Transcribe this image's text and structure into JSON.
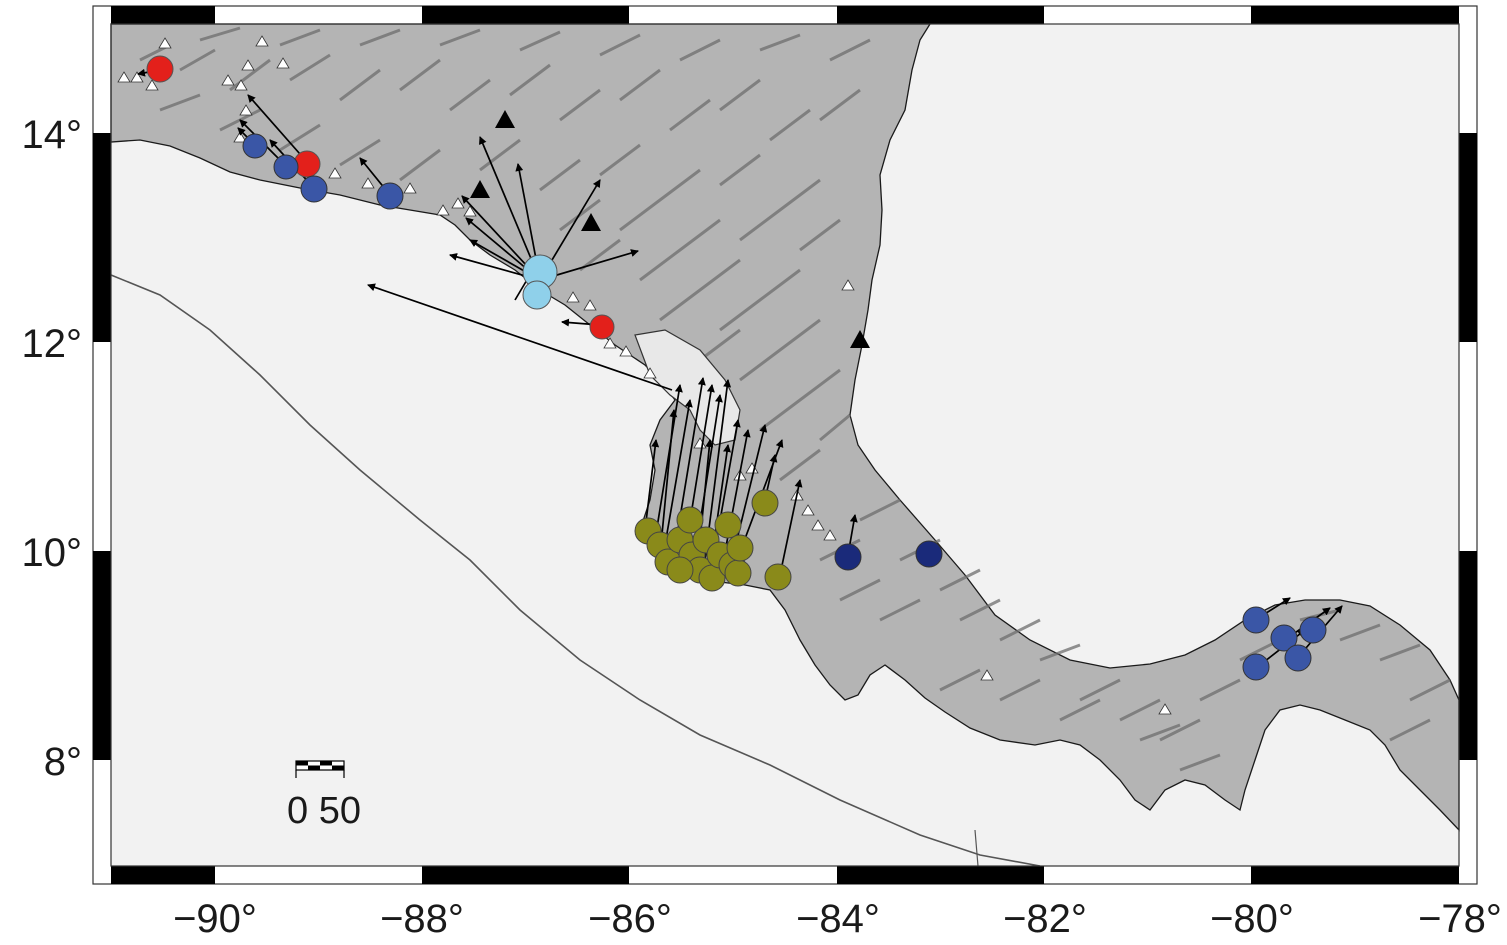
{
  "map": {
    "x_ticks": [
      "−90°",
      "−88°",
      "−86°",
      "−84°",
      "−82°",
      "−80°",
      "−78°"
    ],
    "y_ticks": [
      "14°",
      "12°",
      "10°",
      "8°"
    ],
    "scale_bar_label": "0 50",
    "colors": {
      "ocean": "#f2f2f2",
      "land": "#b8b8b8",
      "relief": "#7a7a7a",
      "coast": "#1a1a1a",
      "trench": "#555555",
      "red": "#e3201b",
      "blue": "#3a56a6",
      "navy": "#1a2a7a",
      "light_blue": "#8fd0ea",
      "olive": "#8a8a1a"
    },
    "volcano_icon": "triangle-icon",
    "arrow_icon": "arrow-icon"
  }
}
